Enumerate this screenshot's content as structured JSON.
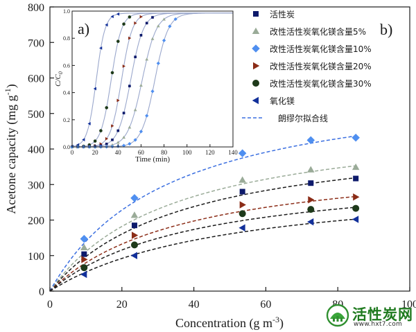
{
  "chart_data": [
    {
      "type": "scatter",
      "panel_label": "b)",
      "xlabel": "Concentration (g m",
      "xlabel_sup": "-3",
      "xlabel_end": ")",
      "ylabel": "Acetone capacity (mg g",
      "ylabel_sup": "-1",
      "ylabel_end": ")",
      "xlim": [
        0,
        100
      ],
      "ylim": [
        0,
        800
      ],
      "xticks": [
        0,
        20,
        40,
        60,
        80,
        100
      ],
      "yticks": [
        0,
        100,
        200,
        300,
        400,
        500,
        600,
        700,
        800
      ],
      "series": [
        {
          "name": "活性炭",
          "marker": "square",
          "color": "#0d1a6b",
          "x": [
            9.5,
            23.5,
            53.5,
            72.5,
            85
          ],
          "y": [
            104,
            185,
            280,
            304,
            317
          ]
        },
        {
          "name": "改性活性炭氧化镁含量5%",
          "marker": "triangle-up",
          "color": "#9aab98",
          "x": [
            9.5,
            23.5,
            53.5,
            72.5,
            85
          ],
          "y": [
            123,
            214,
            313,
            342,
            349
          ]
        },
        {
          "name": "改性活性炭氧化镁含量10%",
          "marker": "diamond",
          "color": "#4f8ff0",
          "x": [
            9.5,
            23.5,
            53.5,
            72.5,
            85
          ],
          "y": [
            147,
            262,
            388,
            425,
            432
          ]
        },
        {
          "name": "改性活性炭氧化镁含量20%",
          "marker": "triangle-right",
          "color": "#8b2c17",
          "x": [
            9.5,
            23.5,
            53.5,
            72.5,
            85
          ],
          "y": [
            89,
            157,
            243,
            257,
            265
          ]
        },
        {
          "name": "改性活性炭氧化镁含量30%",
          "marker": "circle",
          "color": "#1e3a1a",
          "x": [
            9.5,
            23.5,
            53.5,
            72.5,
            85
          ],
          "y": [
            66,
            130,
            218,
            230,
            233
          ]
        },
        {
          "name": "氧化镁",
          "marker": "triangle-left",
          "color": "#12309a",
          "x": [
            9.5,
            23.5,
            53.5,
            72.5,
            85
          ],
          "y": [
            47,
            100,
            178,
            195,
            202
          ]
        }
      ],
      "fit_legend": "朗缪尔拟合线",
      "fits": [
        {
          "color": "#1a1a1a",
          "qmax": 458,
          "K": 0.027
        },
        {
          "color": "#9aab98",
          "qmax": 496,
          "K": 0.029
        },
        {
          "color": "#3a6ee0",
          "qmax": 608,
          "K": 0.03
        },
        {
          "color": "#8b2c17",
          "qmax": 387,
          "K": 0.026
        },
        {
          "color": "#1a1a1a",
          "qmax": 347,
          "K": 0.025
        },
        {
          "color": "#1a1a1a",
          "qmax": 322,
          "K": 0.02
        }
      ],
      "legend_position": "top-right",
      "grid": false
    },
    {
      "type": "line",
      "panel_label": "a)",
      "xlabel": "Time (min)",
      "ylabel": "C/C",
      "ylabel_sub": "0",
      "xlim": [
        0,
        140
      ],
      "ylim": [
        0,
        1.0
      ],
      "xticks": [
        0,
        20,
        40,
        60,
        80,
        100,
        120,
        140
      ],
      "yticks": [
        0.0,
        0.2,
        0.4,
        0.6,
        0.8,
        1.0
      ],
      "curves": [
        {
          "series_ref": 5,
          "color": "#9aa7cc",
          "t50": 21,
          "k": 0.26
        },
        {
          "series_ref": 4,
          "color": "#9aa7cc",
          "t50": 34,
          "k": 0.22
        },
        {
          "series_ref": 3,
          "color": "#9aa7cc",
          "t50": 43,
          "k": 0.21
        },
        {
          "series_ref": 0,
          "color": "#9aa7cc",
          "t50": 51,
          "k": 0.18
        },
        {
          "series_ref": 1,
          "color": "#9aa7cc",
          "t50": 61,
          "k": 0.16
        },
        {
          "series_ref": 2,
          "color": "#9aa7cc",
          "t50": 72,
          "k": 0.17
        }
      ],
      "point_times": [
        0,
        5,
        10,
        15,
        20,
        25,
        30,
        35,
        40,
        45,
        50,
        55,
        60,
        65,
        70,
        75,
        80,
        85,
        90,
        95,
        100,
        105,
        110,
        115,
        120,
        125,
        130,
        135
      ],
      "plateau": 0.985
    }
  ],
  "watermark": {
    "title": "活性炭网",
    "url": "www.hxt7.com"
  },
  "colors": {
    "axis": "#1a1a1a",
    "text": "#1a1a1a",
    "accent_green": "#1f7a1f"
  }
}
